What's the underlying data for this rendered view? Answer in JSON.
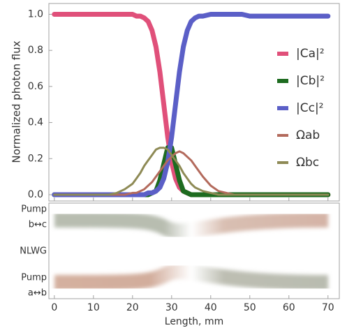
{
  "chart_data": {
    "type": "line",
    "ylabel": "Normalized photon flux",
    "xlabel": "Length, mm",
    "legend": "right",
    "xlim": [
      -1.4,
      72.9
    ],
    "ylim": [
      -0.035,
      1.06
    ],
    "xticks": [
      0,
      10,
      20,
      30,
      40,
      50,
      60,
      70
    ],
    "yticks": [
      {
        "value": 0,
        "label": "0.0"
      },
      0.2,
      0.4,
      0.6,
      0.8,
      {
        "value": 1,
        "label": "1.0"
      }
    ],
    "x": [
      0,
      2,
      4,
      6,
      8,
      10,
      12,
      14,
      16,
      18,
      20,
      21,
      22,
      23,
      24,
      25,
      26,
      27,
      28,
      29,
      30,
      31,
      32,
      33,
      34,
      35,
      36,
      37,
      38,
      40,
      42,
      44,
      46,
      48,
      50,
      52,
      54,
      56,
      58,
      60,
      62,
      64,
      66,
      68,
      70
    ],
    "series": [
      {
        "name": "|Ca|²",
        "color": "#e0507a",
        "values": [
          1,
          1,
          1,
          1,
          1,
          1,
          1,
          1,
          1,
          1,
          1,
          0.99,
          0.99,
          0.98,
          0.96,
          0.91,
          0.82,
          0.68,
          0.5,
          0.32,
          0.18,
          0.09,
          0.04,
          0.02,
          0.01,
          0,
          0,
          0,
          0,
          0,
          0,
          0,
          0,
          0,
          0,
          0,
          0,
          0,
          0,
          0,
          0,
          0,
          0,
          0,
          0
        ]
      },
      {
        "name": "|Cb|²",
        "color": "#1d6b1f",
        "values": [
          0,
          0,
          0,
          0,
          0,
          0,
          0,
          0,
          0,
          0,
          0,
          0,
          0,
          0,
          0,
          0.01,
          0.02,
          0.08,
          0.17,
          0.26,
          0.26,
          0.17,
          0.08,
          0.02,
          0.01,
          0,
          0,
          0,
          0,
          0,
          0,
          0,
          0,
          0,
          0,
          0,
          0,
          0,
          0,
          0,
          0,
          0,
          0,
          0,
          0
        ]
      },
      {
        "name": "|Cc|²",
        "color": "#5b5fc7",
        "values": [
          0,
          0,
          0,
          0,
          0,
          0,
          0,
          0,
          0,
          0,
          0,
          0,
          0,
          0,
          0.01,
          0.01,
          0.02,
          0.04,
          0.09,
          0.18,
          0.32,
          0.5,
          0.68,
          0.82,
          0.91,
          0.96,
          0.98,
          0.99,
          0.99,
          1,
          1,
          1,
          1,
          1,
          0.99,
          0.99,
          0.99,
          0.99,
          0.99,
          0.99,
          0.99,
          0.99,
          0.99,
          0.99,
          0.99
        ]
      },
      {
        "name": "Ωab",
        "color": "#b36a5c",
        "values": [
          0,
          0,
          0,
          0,
          0,
          0,
          0,
          0,
          0,
          0,
          0.01,
          0.01,
          0.02,
          0.03,
          0.05,
          0.07,
          0.1,
          0.13,
          0.16,
          0.19,
          0.21,
          0.23,
          0.24,
          0.23,
          0.21,
          0.19,
          0.16,
          0.13,
          0.1,
          0.05,
          0.02,
          0.01,
          0,
          0,
          0,
          0,
          0,
          0,
          0,
          0,
          0,
          0,
          0,
          0,
          0
        ]
      },
      {
        "name": "Ωbc",
        "color": "#8e8a55",
        "values": [
          0,
          0,
          0,
          0,
          0,
          0,
          0,
          0,
          0.01,
          0.03,
          0.06,
          0.09,
          0.12,
          0.16,
          0.19,
          0.22,
          0.25,
          0.26,
          0.26,
          0.25,
          0.22,
          0.19,
          0.16,
          0.12,
          0.09,
          0.06,
          0.04,
          0.03,
          0.02,
          0.01,
          0,
          0,
          0,
          0,
          0,
          0,
          0,
          0,
          0,
          0,
          0,
          0,
          0,
          0,
          0
        ]
      }
    ],
    "lower_panel": {
      "labels": [
        "Pump",
        "b↔c",
        "NLWG",
        "Pump",
        "a↔b"
      ]
    }
  }
}
